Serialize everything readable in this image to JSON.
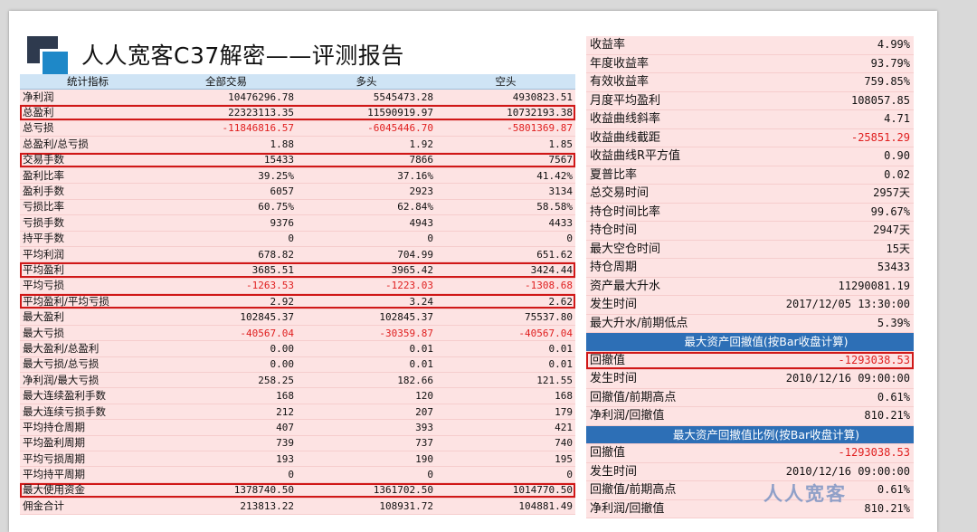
{
  "title": "人人宽客C37解密——评测报告",
  "watermark": "人人宽客",
  "colors": {
    "accent_blue": "#2d6fb6",
    "header_blue": "#cfe4f5",
    "row_pink": "#fde3e3",
    "negative_red": "#e02020",
    "highlight_red": "#d01818"
  },
  "left_table": {
    "headers": [
      "统计指标",
      "全部交易",
      "多头",
      "空头"
    ],
    "rows": [
      {
        "label": "净利润",
        "all": "10476296.78",
        "long": "5545473.28",
        "short": "4930823.51",
        "hl": false
      },
      {
        "label": "总盈利",
        "all": "22323113.35",
        "long": "11590919.97",
        "short": "10732193.38",
        "hl": true
      },
      {
        "label": "总亏损",
        "all": "-11846816.57",
        "long": "-6045446.70",
        "short": "-5801369.87",
        "hl": false,
        "neg": true
      },
      {
        "label": "总盈利/总亏损",
        "all": "1.88",
        "long": "1.92",
        "short": "1.85",
        "hl": false
      },
      {
        "label": "交易手数",
        "all": "15433",
        "long": "7866",
        "short": "7567",
        "hl": true
      },
      {
        "label": "盈利比率",
        "all": "39.25%",
        "long": "37.16%",
        "short": "41.42%",
        "hl": false
      },
      {
        "label": "盈利手数",
        "all": "6057",
        "long": "2923",
        "short": "3134",
        "hl": false
      },
      {
        "label": "亏损比率",
        "all": "60.75%",
        "long": "62.84%",
        "short": "58.58%",
        "hl": false
      },
      {
        "label": "亏损手数",
        "all": "9376",
        "long": "4943",
        "short": "4433",
        "hl": false
      },
      {
        "label": "持平手数",
        "all": "0",
        "long": "0",
        "short": "0",
        "hl": false
      },
      {
        "label": "平均利润",
        "all": "678.82",
        "long": "704.99",
        "short": "651.62",
        "hl": false
      },
      {
        "label": "平均盈利",
        "all": "3685.51",
        "long": "3965.42",
        "short": "3424.44",
        "hl": true
      },
      {
        "label": "平均亏损",
        "all": "-1263.53",
        "long": "-1223.03",
        "short": "-1308.68",
        "hl": false,
        "neg": true
      },
      {
        "label": "平均盈利/平均亏损",
        "all": "2.92",
        "long": "3.24",
        "short": "2.62",
        "hl": true
      },
      {
        "label": "最大盈利",
        "all": "102845.37",
        "long": "102845.37",
        "short": "75537.80",
        "hl": false
      },
      {
        "label": "最大亏损",
        "all": "-40567.04",
        "long": "-30359.87",
        "short": "-40567.04",
        "hl": false,
        "neg": true
      },
      {
        "label": "最大盈利/总盈利",
        "all": "0.00",
        "long": "0.01",
        "short": "0.01",
        "hl": false
      },
      {
        "label": "最大亏损/总亏损",
        "all": "0.00",
        "long": "0.01",
        "short": "0.01",
        "hl": false
      },
      {
        "label": "净利润/最大亏损",
        "all": "258.25",
        "long": "182.66",
        "short": "121.55",
        "hl": false
      },
      {
        "label": "最大连续盈利手数",
        "all": "168",
        "long": "120",
        "short": "168",
        "hl": false
      },
      {
        "label": "最大连续亏损手数",
        "all": "212",
        "long": "207",
        "short": "179",
        "hl": false
      },
      {
        "label": "平均持仓周期",
        "all": "407",
        "long": "393",
        "short": "421",
        "hl": false
      },
      {
        "label": "平均盈利周期",
        "all": "739",
        "long": "737",
        "short": "740",
        "hl": false
      },
      {
        "label": "平均亏损周期",
        "all": "193",
        "long": "190",
        "short": "195",
        "hl": false
      },
      {
        "label": "平均持平周期",
        "all": "0",
        "long": "0",
        "short": "0",
        "hl": false
      },
      {
        "label": "最大使用资金",
        "all": "1378740.50",
        "long": "1361702.50",
        "short": "1014770.50",
        "hl": true
      },
      {
        "label": "佣金合计",
        "all": "213813.22",
        "long": "108931.72",
        "short": "104881.49",
        "hl": false
      }
    ]
  },
  "right_table": {
    "rows": [
      {
        "label": "收益率",
        "value": "4.99%"
      },
      {
        "label": "年度收益率",
        "value": "93.79%"
      },
      {
        "label": "有效收益率",
        "value": "759.85%"
      },
      {
        "label": "月度平均盈利",
        "value": "108057.85"
      },
      {
        "label": "收益曲线斜率",
        "value": "4.71"
      },
      {
        "label": "收益曲线截距",
        "value": "-25851.29",
        "neg": true
      },
      {
        "label": "收益曲线R平方值",
        "value": "0.90"
      },
      {
        "label": "夏普比率",
        "value": "0.02"
      },
      {
        "label": "总交易时间",
        "value": "2957天"
      },
      {
        "label": "持仓时间比率",
        "value": "99.67%"
      },
      {
        "label": "持仓时间",
        "value": "2947天"
      },
      {
        "label": "最大空仓时间",
        "value": "15天"
      },
      {
        "label": "持仓周期",
        "value": "53433"
      },
      {
        "label": "资产最大升水",
        "value": "11290081.19"
      },
      {
        "label": "发生时间",
        "value": "2017/12/05 13:30:00"
      },
      {
        "label": "最大升水/前期低点",
        "value": "5.39%"
      },
      {
        "section": "最大资产回撤值(按Bar收盘计算)"
      },
      {
        "label": "回撤值",
        "value": "-1293038.53",
        "neg": true,
        "hl": true
      },
      {
        "label": "发生时间",
        "value": "2010/12/16 09:00:00"
      },
      {
        "label": "回撤值/前期高点",
        "value": "0.61%"
      },
      {
        "label": "净利润/回撤值",
        "value": "810.21%"
      },
      {
        "section": "最大资产回撤值比例(按Bar收盘计算)"
      },
      {
        "label": "回撤值",
        "value": "-1293038.53",
        "neg": true
      },
      {
        "label": "发生时间",
        "value": "2010/12/16 09:00:00"
      },
      {
        "label": "回撤值/前期高点",
        "value": "0.61%"
      },
      {
        "label": "净利润/回撤值",
        "value": "810.21%"
      }
    ]
  }
}
